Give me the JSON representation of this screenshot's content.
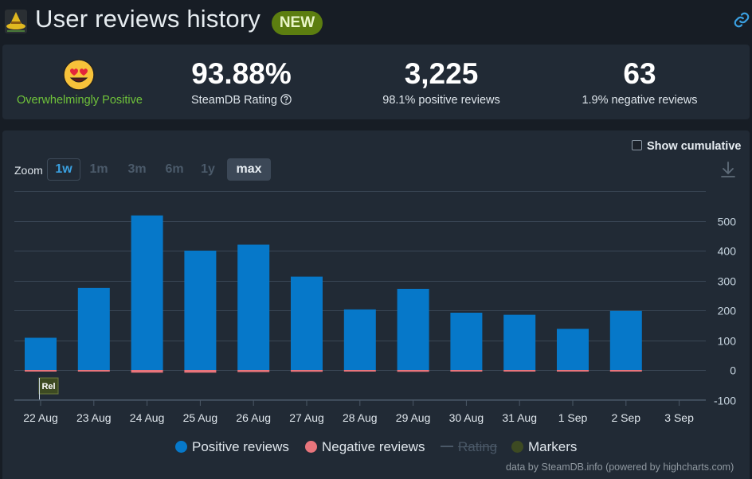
{
  "header": {
    "title": "User reviews history",
    "badge": "NEW"
  },
  "stats": {
    "verdict": "Overwhelmingly Positive",
    "rating_value": "93.88%",
    "rating_label": "SteamDB Rating",
    "positive_value": "3,225",
    "positive_label": "98.1% positive reviews",
    "negative_value": "63",
    "negative_label": "1.9% negative reviews"
  },
  "controls": {
    "cumulative_label": "Show cumulative",
    "zoom_label": "Zoom",
    "zoom_options": [
      "1w",
      "1m",
      "3m",
      "6m",
      "1y",
      "max"
    ],
    "zoom_selected": "max"
  },
  "colors": {
    "positive": "#0678c9",
    "negative": "#e8757c",
    "rating": "#4a5867",
    "markers": "#3d4a22",
    "verdict": "#6fc23a",
    "badge": "#5c7e10"
  },
  "chart_data": {
    "type": "bar",
    "categories": [
      "22 Aug",
      "23 Aug",
      "24 Aug",
      "25 Aug",
      "26 Aug",
      "27 Aug",
      "28 Aug",
      "29 Aug",
      "30 Aug",
      "31 Aug",
      "1 Sep",
      "2 Sep",
      "3 Sep"
    ],
    "series": [
      {
        "name": "Positive reviews",
        "values": [
          108,
          275,
          518,
          400,
          420,
          313,
          203,
          272,
          192,
          185,
          138,
          198,
          null
        ]
      },
      {
        "name": "Negative reviews",
        "values": [
          -1,
          -2,
          -9,
          -9,
          -7,
          -6,
          -5,
          -6,
          -3,
          -2,
          -3,
          -3,
          null
        ]
      }
    ],
    "yticks": [
      500,
      400,
      300,
      200,
      100,
      0,
      -100
    ],
    "ylim": [
      -100,
      600
    ],
    "grid": true,
    "stacked": true,
    "legend": [
      "Positive reviews",
      "Negative reviews",
      "Rating",
      "Markers"
    ],
    "legend_disabled": [
      "Rating"
    ],
    "marker": {
      "label": "Rel",
      "category": "22 Aug"
    },
    "legend_position": "bottom-center"
  },
  "credits": "data by SteamDB.info (powered by highcharts.com)"
}
